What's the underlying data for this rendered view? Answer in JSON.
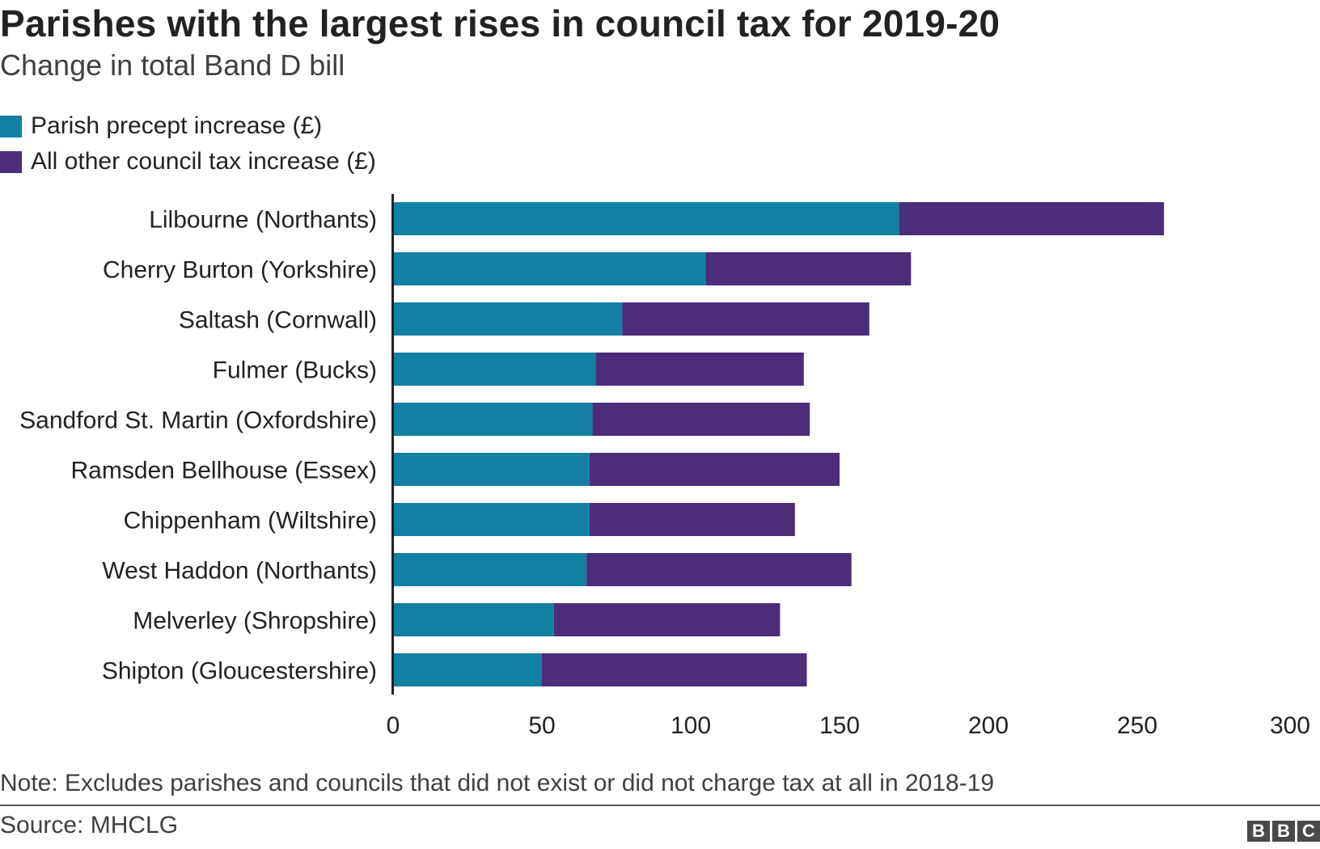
{
  "header": {
    "title": "Parishes with the largest rises in council tax for 2019-20",
    "subtitle": "Change in total Band D bill"
  },
  "legend": [
    {
      "label": "Parish precept increase (£)",
      "color": "#1380a1"
    },
    {
      "label": "All other council tax increase (£)",
      "color": "#4b2d79"
    }
  ],
  "chart_data": {
    "type": "bar",
    "orientation": "horizontal",
    "stacked": true,
    "title": "Parishes with the largest rises in council tax for 2019-20",
    "subtitle": "Change in total Band D bill",
    "xlabel": "",
    "ylabel": "",
    "xlim": [
      0,
      300
    ],
    "xticks": [
      0,
      50,
      100,
      150,
      200,
      250,
      300
    ],
    "categories": [
      "Lilbourne (Northants)",
      "Cherry Burton (Yorkshire)",
      "Saltash (Cornwall)",
      "Fulmer (Bucks)",
      "Sandford St. Martin (Oxfordshire)",
      "Ramsden Bellhouse (Essex)",
      "Chippenham (Wiltshire)",
      "West Haddon (Northants)",
      "Melverley (Shropshire)",
      "Shipton (Gloucestershire)"
    ],
    "series": [
      {
        "name": "Parish precept increase (£)",
        "color": "#1380a1",
        "values": [
          170,
          105,
          77,
          68,
          67,
          66,
          66,
          65,
          54,
          50
        ]
      },
      {
        "name": "All other council tax increase (£)",
        "color": "#4b2d79",
        "values": [
          89,
          69,
          83,
          70,
          73,
          84,
          69,
          89,
          76,
          89
        ]
      }
    ],
    "legend_position": "top-left",
    "grid": false
  },
  "footer": {
    "note": "Note: Excludes parishes and councils that did not exist or did not charge tax at all in 2018-19",
    "source": "Source: MHCLG",
    "logo": [
      "B",
      "B",
      "C"
    ]
  }
}
